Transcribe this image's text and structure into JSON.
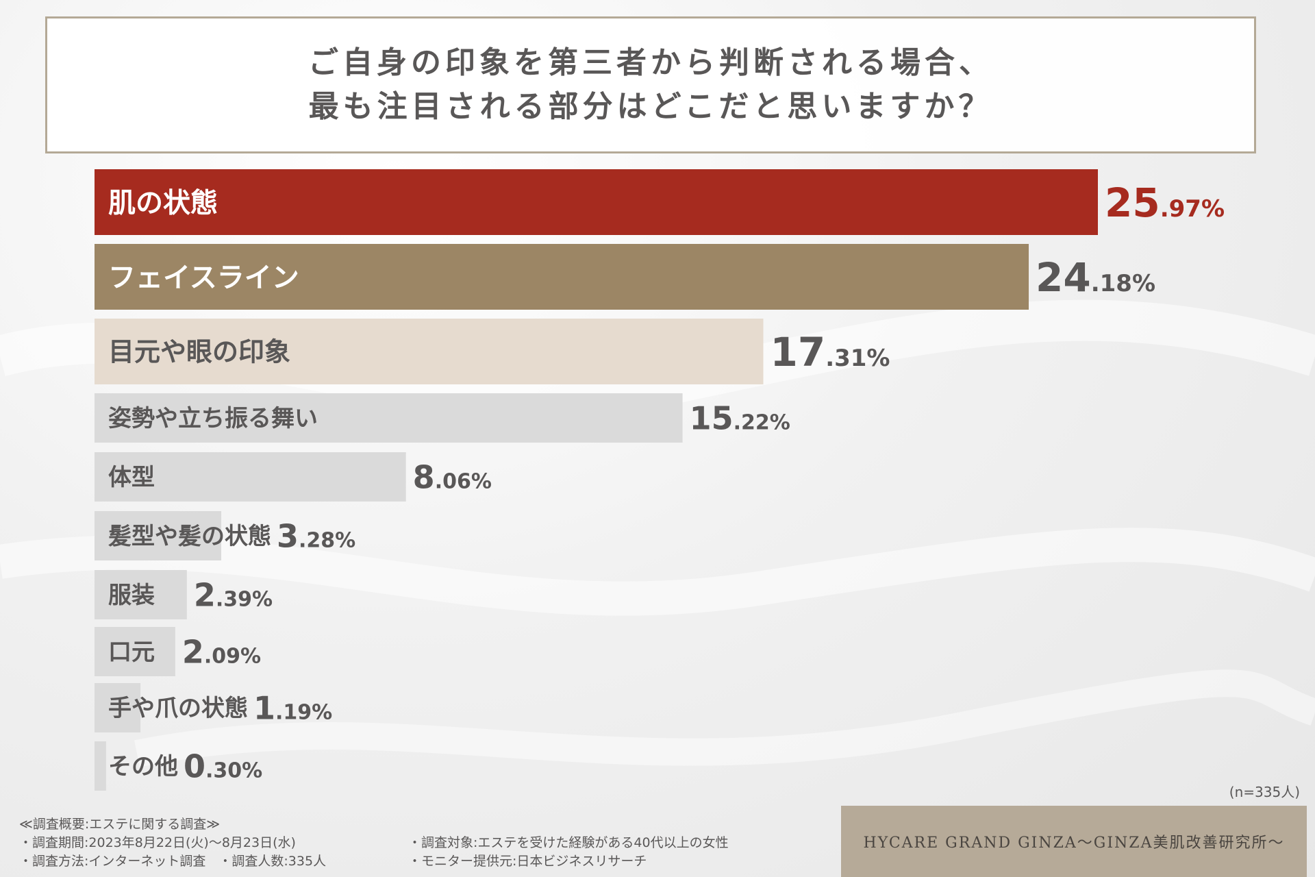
{
  "title": {
    "line1": "ご自身の印象を第三者から判断される場合、",
    "line2": "最も注目される部分はどこだと思いますか？"
  },
  "chart_data": {
    "type": "bar",
    "orientation": "horizontal",
    "categories": [
      "肌の状態",
      "フェイスライン",
      "目元や眼の印象",
      "姿勢や立ち振る舞い",
      "体型",
      "髪型や髪の状態",
      "服装",
      "口元",
      "手や爪の状態",
      "その他"
    ],
    "values": [
      25.97,
      24.18,
      17.31,
      15.22,
      8.06,
      3.28,
      2.39,
      2.09,
      1.19,
      0.3
    ],
    "value_labels": [
      {
        "int": "25",
        "dec": ".97%"
      },
      {
        "int": "24",
        "dec": ".18%"
      },
      {
        "int": "17",
        "dec": ".31%"
      },
      {
        "int": "15",
        "dec": ".22%"
      },
      {
        "int": "8",
        "dec": ".06%"
      },
      {
        "int": "3",
        "dec": ".28%"
      },
      {
        "int": "2",
        "dec": ".39%"
      },
      {
        "int": "2",
        "dec": ".09%"
      },
      {
        "int": "1",
        "dec": ".19%"
      },
      {
        "int": "0",
        "dec": ".30%"
      }
    ],
    "bar_colors": [
      "#a62b1f",
      "#9c8665",
      "#e6dbcf",
      "#dadada",
      "#dadada",
      "#dadada",
      "#dadada",
      "#dadada",
      "#dadada",
      "#dadada"
    ],
    "label_colors": [
      "#ffffff",
      "#ffffff",
      "#595757",
      "#595757",
      "#595757",
      "#595757",
      "#595757",
      "#595757",
      "#595757",
      "#595757"
    ],
    "value_colors": [
      "#a62b1f",
      "#595757",
      "#595757",
      "#595757",
      "#595757",
      "#595757",
      "#595757",
      "#595757",
      "#595757",
      "#595757"
    ],
    "unit": "%"
  },
  "sample_size": "(n=335人)",
  "survey": {
    "heading": "≪調査概要:エステに関する調査≫",
    "period": "・調査期間:2023年8月22日(火)～8月23日(水)",
    "method": "・調査方法:インターネット調査　・調査人数:335人",
    "target": "・調査対象:エステを受けた経験がある40代以上の女性",
    "provider": "・モニター提供元:日本ビジネスリサーチ"
  },
  "brand": "HYCARE GRAND GINZA～GINZA美肌改善研究所～"
}
